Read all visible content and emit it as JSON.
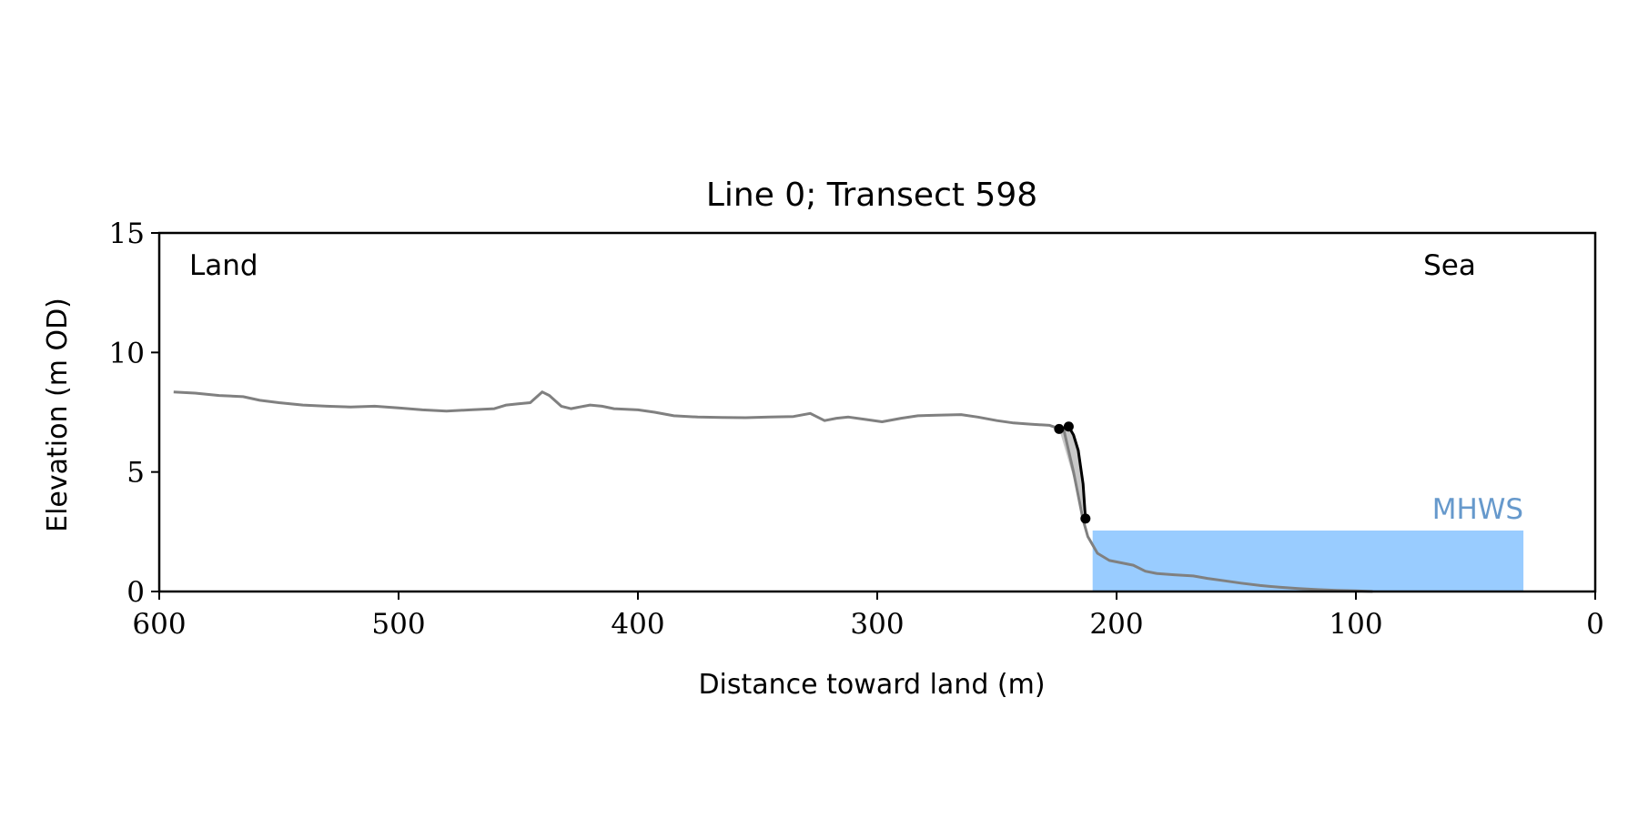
{
  "chart_data": {
    "type": "line",
    "title": "Line 0; Transect 598",
    "xlabel": "Distance toward land (m)",
    "ylabel": "Elevation (m OD)",
    "xlim": [
      600,
      0
    ],
    "ylim": [
      0,
      15
    ],
    "x_ticks": [
      "600",
      "500",
      "400",
      "300",
      "200",
      "100",
      "0"
    ],
    "y_ticks": [
      "0",
      "5",
      "10",
      "15"
    ],
    "grid": false,
    "annotations": {
      "land": "Land",
      "sea": "Sea",
      "mhws": "MHWS"
    },
    "colors": {
      "profile": "#808080",
      "cliff": "#000000",
      "cliff_fill": "#c8c8c8",
      "mhws_fill": "#99ccff",
      "mhws_text": "#6699cc"
    },
    "mhws": {
      "elevation": 2.55,
      "x_from": 210,
      "x_to": 30
    },
    "profile": {
      "x": [
        594,
        585,
        575,
        565,
        558,
        550,
        540,
        530,
        520,
        510,
        500,
        490,
        480,
        470,
        460,
        455,
        450,
        445,
        440,
        437,
        432,
        428,
        420,
        415,
        410,
        400,
        393,
        385,
        375,
        365,
        355,
        345,
        335,
        328,
        322,
        317,
        312,
        305,
        298,
        290,
        283,
        275,
        265,
        258,
        250,
        243,
        236,
        228,
        222,
        218,
        214,
        212,
        208,
        203,
        198,
        193,
        188,
        183,
        176,
        168,
        162,
        155,
        148,
        140,
        132,
        124,
        116,
        108,
        100,
        93
      ],
      "y": [
        8.35,
        8.3,
        8.2,
        8.15,
        8.0,
        7.9,
        7.8,
        7.75,
        7.72,
        7.75,
        7.68,
        7.6,
        7.55,
        7.6,
        7.65,
        7.8,
        7.85,
        7.9,
        8.35,
        8.2,
        7.75,
        7.65,
        7.8,
        7.75,
        7.65,
        7.6,
        7.5,
        7.35,
        7.3,
        7.28,
        7.27,
        7.3,
        7.32,
        7.45,
        7.15,
        7.25,
        7.3,
        7.2,
        7.1,
        7.25,
        7.35,
        7.38,
        7.4,
        7.3,
        7.15,
        7.05,
        7.0,
        6.95,
        6.75,
        5.0,
        3.0,
        2.3,
        1.6,
        1.3,
        1.2,
        1.1,
        0.85,
        0.75,
        0.7,
        0.65,
        0.55,
        0.45,
        0.35,
        0.25,
        0.18,
        0.12,
        0.08,
        0.05,
        0.03,
        0.0
      ]
    },
    "cliff_line": {
      "x": [
        224,
        220,
        218,
        216,
        214,
        213
      ],
      "y": [
        6.8,
        6.9,
        6.55,
        5.9,
        4.5,
        3.05
      ]
    },
    "cliff_points": {
      "x": [
        224,
        220,
        213
      ],
      "y": [
        6.8,
        6.9,
        3.05
      ]
    }
  }
}
